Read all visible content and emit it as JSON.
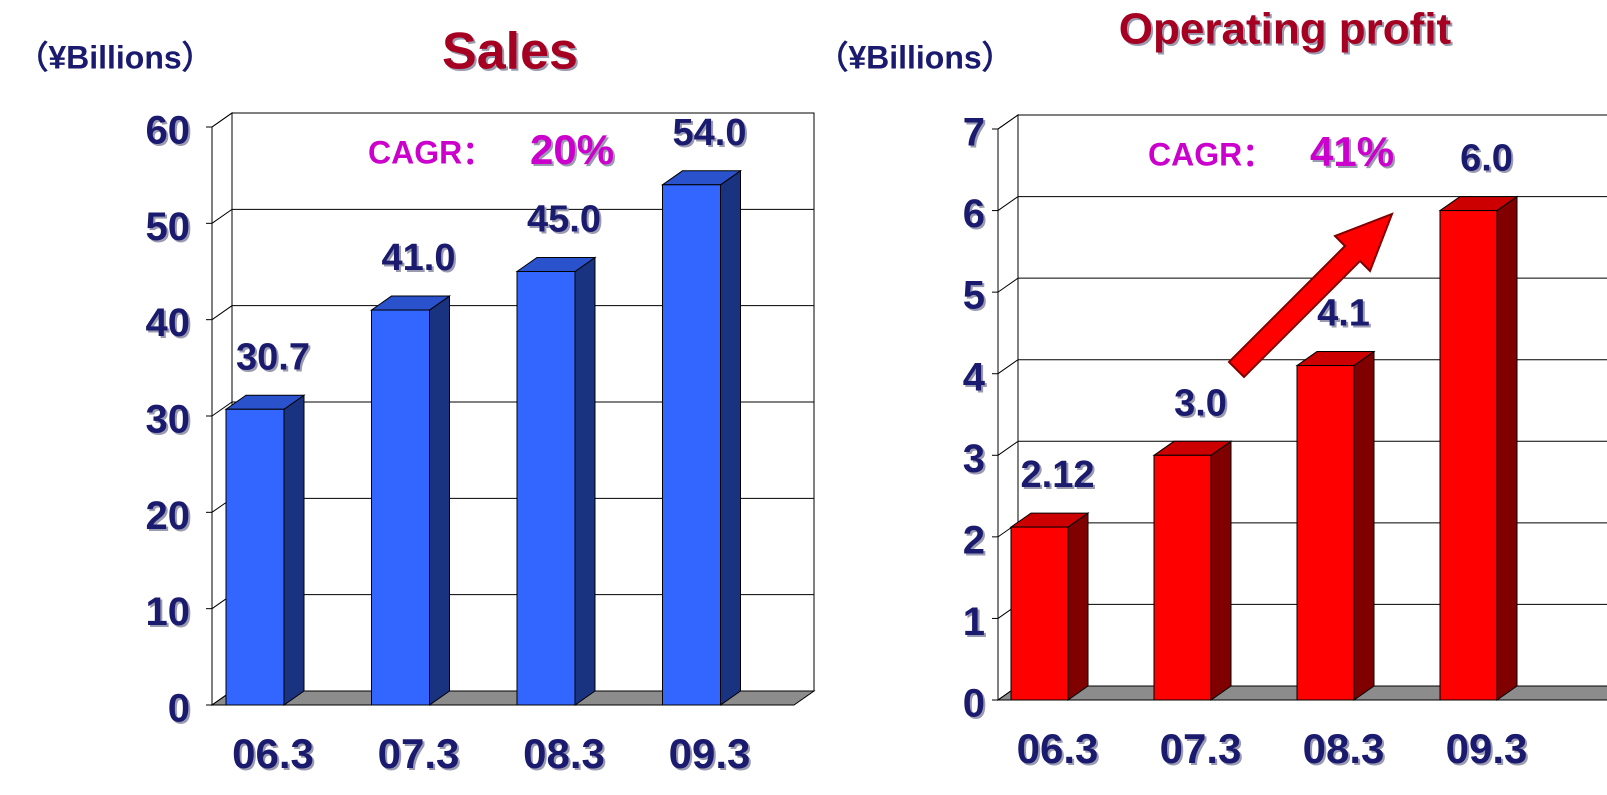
{
  "chart_data": [
    {
      "type": "bar3d",
      "title": "Sales",
      "y_axis_label": "（¥Billions）",
      "annotation_label": "CAGR：",
      "annotation_value": "20%",
      "categories": [
        "06.3",
        "07.3",
        "08.3",
        "09.3"
      ],
      "values": [
        30.7,
        41.0,
        45.0,
        54.0
      ],
      "value_labels": [
        "30.7",
        "41.0",
        "45.0",
        "54.0"
      ],
      "color": "#3366ff",
      "ylim": [
        0,
        60
      ],
      "yticks": [
        0,
        10,
        20,
        30,
        40,
        50,
        60
      ],
      "grid": true
    },
    {
      "type": "bar3d",
      "title": "Operating profit",
      "y_axis_label": "（¥Billions）",
      "annotation_label": "CAGR：",
      "annotation_value": "41%",
      "categories": [
        "06.3",
        "07.3",
        "08.3",
        "09.3"
      ],
      "values": [
        2.12,
        3.0,
        4.1,
        6.0
      ],
      "value_labels": [
        "2.12",
        "3.0",
        "4.1",
        "6.0"
      ],
      "color": "#ff0000",
      "ylim": [
        0,
        7
      ],
      "yticks": [
        0,
        1,
        2,
        3,
        4,
        5,
        6,
        7
      ],
      "grid": true
    }
  ]
}
